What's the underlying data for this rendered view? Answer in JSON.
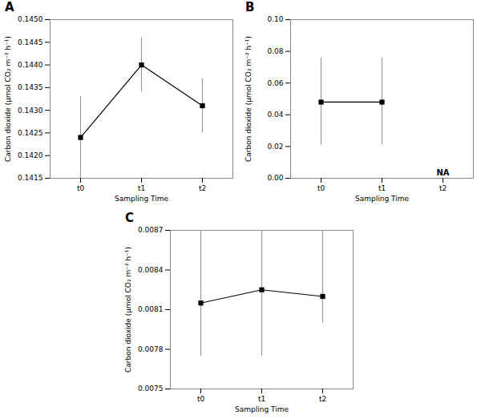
{
  "chart_data": [
    {
      "type": "line",
      "title": "A",
      "categories": [
        "t0",
        "t1",
        "t2"
      ],
      "values": [
        0.1424,
        0.144,
        0.1431
      ],
      "yerr_lower": [
        0.0009,
        0.0006,
        0.0006
      ],
      "yerr_upper": [
        0.0009,
        0.0006,
        0.0006
      ],
      "ylim": [
        0.1415,
        0.145
      ],
      "yticks": [
        0.1415,
        {
          "value": 0.142,
          "label": "0.1420"
        },
        0.1425,
        {
          "value": 0.143,
          "label": "0.1430"
        },
        0.1435,
        {
          "value": 0.144,
          "label": "0.1440"
        },
        0.1445,
        {
          "value": 0.145,
          "label": "0.1450"
        }
      ],
      "x_label": "Sampling Time",
      "y_label": "Carbon dioxide (μmol CO₂ m⁻² h⁻¹)",
      "marker": "square",
      "line_style": "solid",
      "grid": false
    },
    {
      "type": "line",
      "title": "B",
      "categories": [
        "t0",
        "t1",
        "t2"
      ],
      "values": [
        0.048,
        0.048,
        null
      ],
      "yerr_lower": [
        0.027,
        0.027,
        null
      ],
      "yerr_upper": [
        0.028,
        0.028,
        null
      ],
      "ylim": [
        0.0,
        0.1
      ],
      "yticks": [
        {
          "value": 0.0,
          "label": "0.00"
        },
        0.02,
        0.04,
        0.06,
        0.08,
        {
          "value": 0.1,
          "label": "0.10"
        }
      ],
      "x_label": "Sampling Time",
      "y_label": "Carbon dioxide (μmol CO₂ m⁻² h⁻¹)",
      "annotations": [
        {
          "text": "NA",
          "x": "t2",
          "y": 0.002
        }
      ],
      "marker": "square",
      "line_style": "solid",
      "grid": false
    },
    {
      "type": "line",
      "title": "C",
      "categories": [
        "t0",
        "t1",
        "t2"
      ],
      "values": [
        0.00815,
        0.00825,
        0.0082
      ],
      "yerr_lower": [
        0.0004,
        0.0005,
        0.0002
      ],
      "yerr_upper": [
        0.00055,
        0.00045,
        0.0005
      ],
      "ylim": [
        0.0075,
        0.0087
      ],
      "yticks": [
        0.0075,
        0.0078,
        0.0081,
        0.0084,
        0.0087
      ],
      "x_label": "Sampling Time",
      "y_label": "Carbon dioxide (μmol CO₂ m⁻² h⁻¹)",
      "marker": "square",
      "line_style": "solid",
      "grid": false
    }
  ]
}
